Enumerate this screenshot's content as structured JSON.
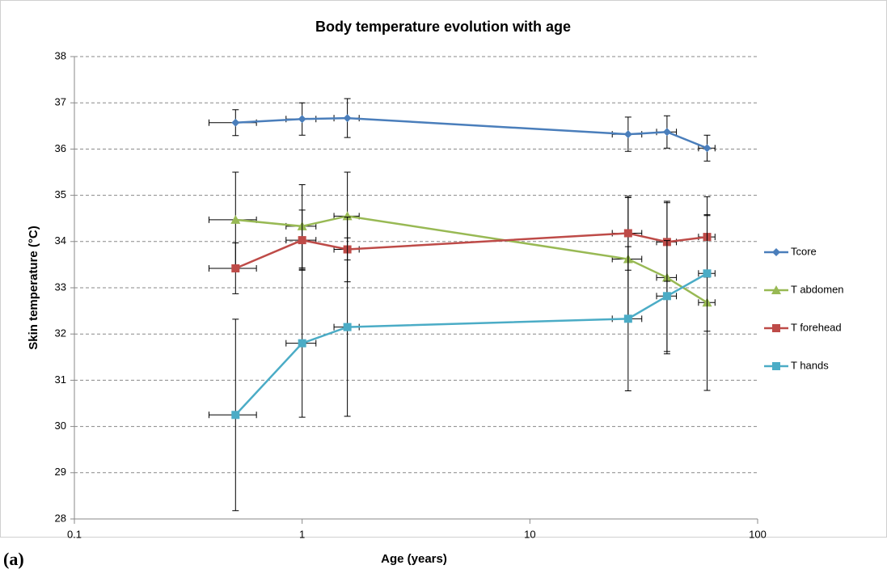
{
  "chart_data": {
    "type": "line",
    "title": "Body temperature evolution with age",
    "x_label": "Age (years)",
    "y_label": "Skin temperature (°C)",
    "panel_label": "(a)",
    "x": [
      0.51,
      1,
      1.58,
      27,
      40,
      60
    ],
    "xerr": [
      0.12,
      0.15,
      0.2,
      4,
      4,
      5
    ],
    "series": [
      {
        "name": "Tcore",
        "color": "#4a7ebb",
        "marker": "diamond",
        "values": [
          36.57,
          36.65,
          36.67,
          36.32,
          36.37,
          36.02
        ],
        "yerr": [
          0.28,
          0.35,
          0.42,
          0.37,
          0.35,
          0.28
        ]
      },
      {
        "name": "T abdomen",
        "color": "#98b954",
        "marker": "triangle",
        "values": [
          34.47,
          34.33,
          34.55,
          33.62,
          33.22,
          32.68
        ],
        "yerr": [
          1.03,
          0.9,
          0.95,
          1.33,
          1.65,
          1.9
        ]
      },
      {
        "name": "T forehead",
        "color": "#be4b48",
        "marker": "square",
        "values": [
          33.42,
          34.03,
          33.83,
          34.18,
          33.99,
          34.1
        ],
        "yerr": [
          0.55,
          0.65,
          0.7,
          0.8,
          0.85,
          0.87
        ]
      },
      {
        "name": "T hands",
        "color": "#4bacc6",
        "marker": "square",
        "values": [
          30.25,
          31.8,
          32.15,
          32.33,
          32.82,
          33.31
        ],
        "yerr": [
          2.07,
          1.6,
          1.93,
          1.56,
          1.2,
          1.25
        ]
      }
    ],
    "xlog": true,
    "xlim": [
      0.1,
      100
    ],
    "xticks": [
      0.1,
      1,
      10,
      100
    ],
    "ylim": [
      28,
      38
    ],
    "yticks": [
      28,
      29,
      30,
      31,
      32,
      33,
      34,
      35,
      36,
      37,
      38
    ],
    "grid": true,
    "legend": "right"
  }
}
